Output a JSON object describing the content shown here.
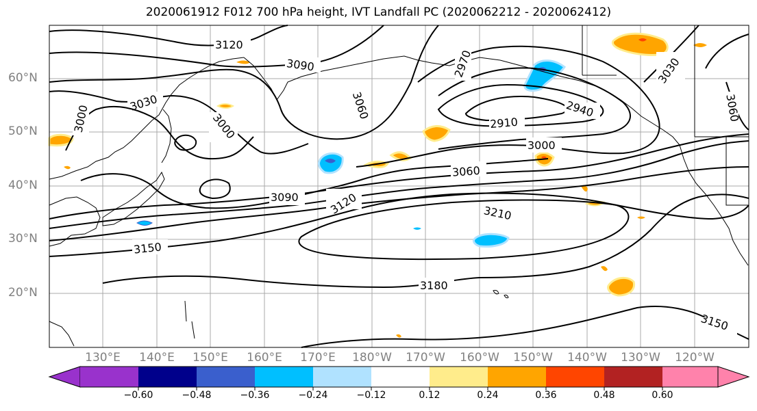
{
  "title": "2020061912 F012 700 hPa height, IVT Landfall PC (2020062212 - 2020062412)",
  "lat_labels": [
    "60°N",
    "50°N",
    "40°N",
    "30°N",
    "20°N"
  ],
  "lon_labels": [
    "130°E",
    "140°E",
    "150°E",
    "160°E",
    "170°E",
    "180°W",
    "170°W",
    "160°W",
    "150°W",
    "140°W",
    "130°W",
    "120°W"
  ],
  "contour_labels": {
    "c3120_top": "3120",
    "c3090_top": "3090",
    "c3060_top": "3060",
    "c3030_left": "3030",
    "c3000_left": "3000",
    "c3000_mid": "3000",
    "c2970": "2970",
    "c2910": "2910",
    "c2940": "2940",
    "c3000_east": "3000",
    "c3060_east": "3060",
    "c3090_mid": "3090",
    "c3120_mid": "3120",
    "c3210": "3210",
    "c3150_left": "3150",
    "c3180": "3180",
    "c3150_right": "3150",
    "c3030_right": "3030",
    "c3060_right": "3060"
  },
  "colorbar": {
    "ticks": [
      "−0.60",
      "−0.48",
      "−0.36",
      "−0.24",
      "−0.12",
      "0.12",
      "0.24",
      "0.36",
      "0.48",
      "0.60"
    ],
    "colors": [
      "#9932cc",
      "#00008b",
      "#3a5fcd",
      "#00bfff",
      "#b0e2ff",
      "#ffffff",
      "#ffec8b",
      "#ffa500",
      "#ff4500",
      "#b22222",
      "#ff82ab"
    ]
  },
  "colors": {
    "land_lines": "#000000",
    "grid": "#a9a9a9",
    "contours": "#000000",
    "axis_labels": "#808080"
  }
}
